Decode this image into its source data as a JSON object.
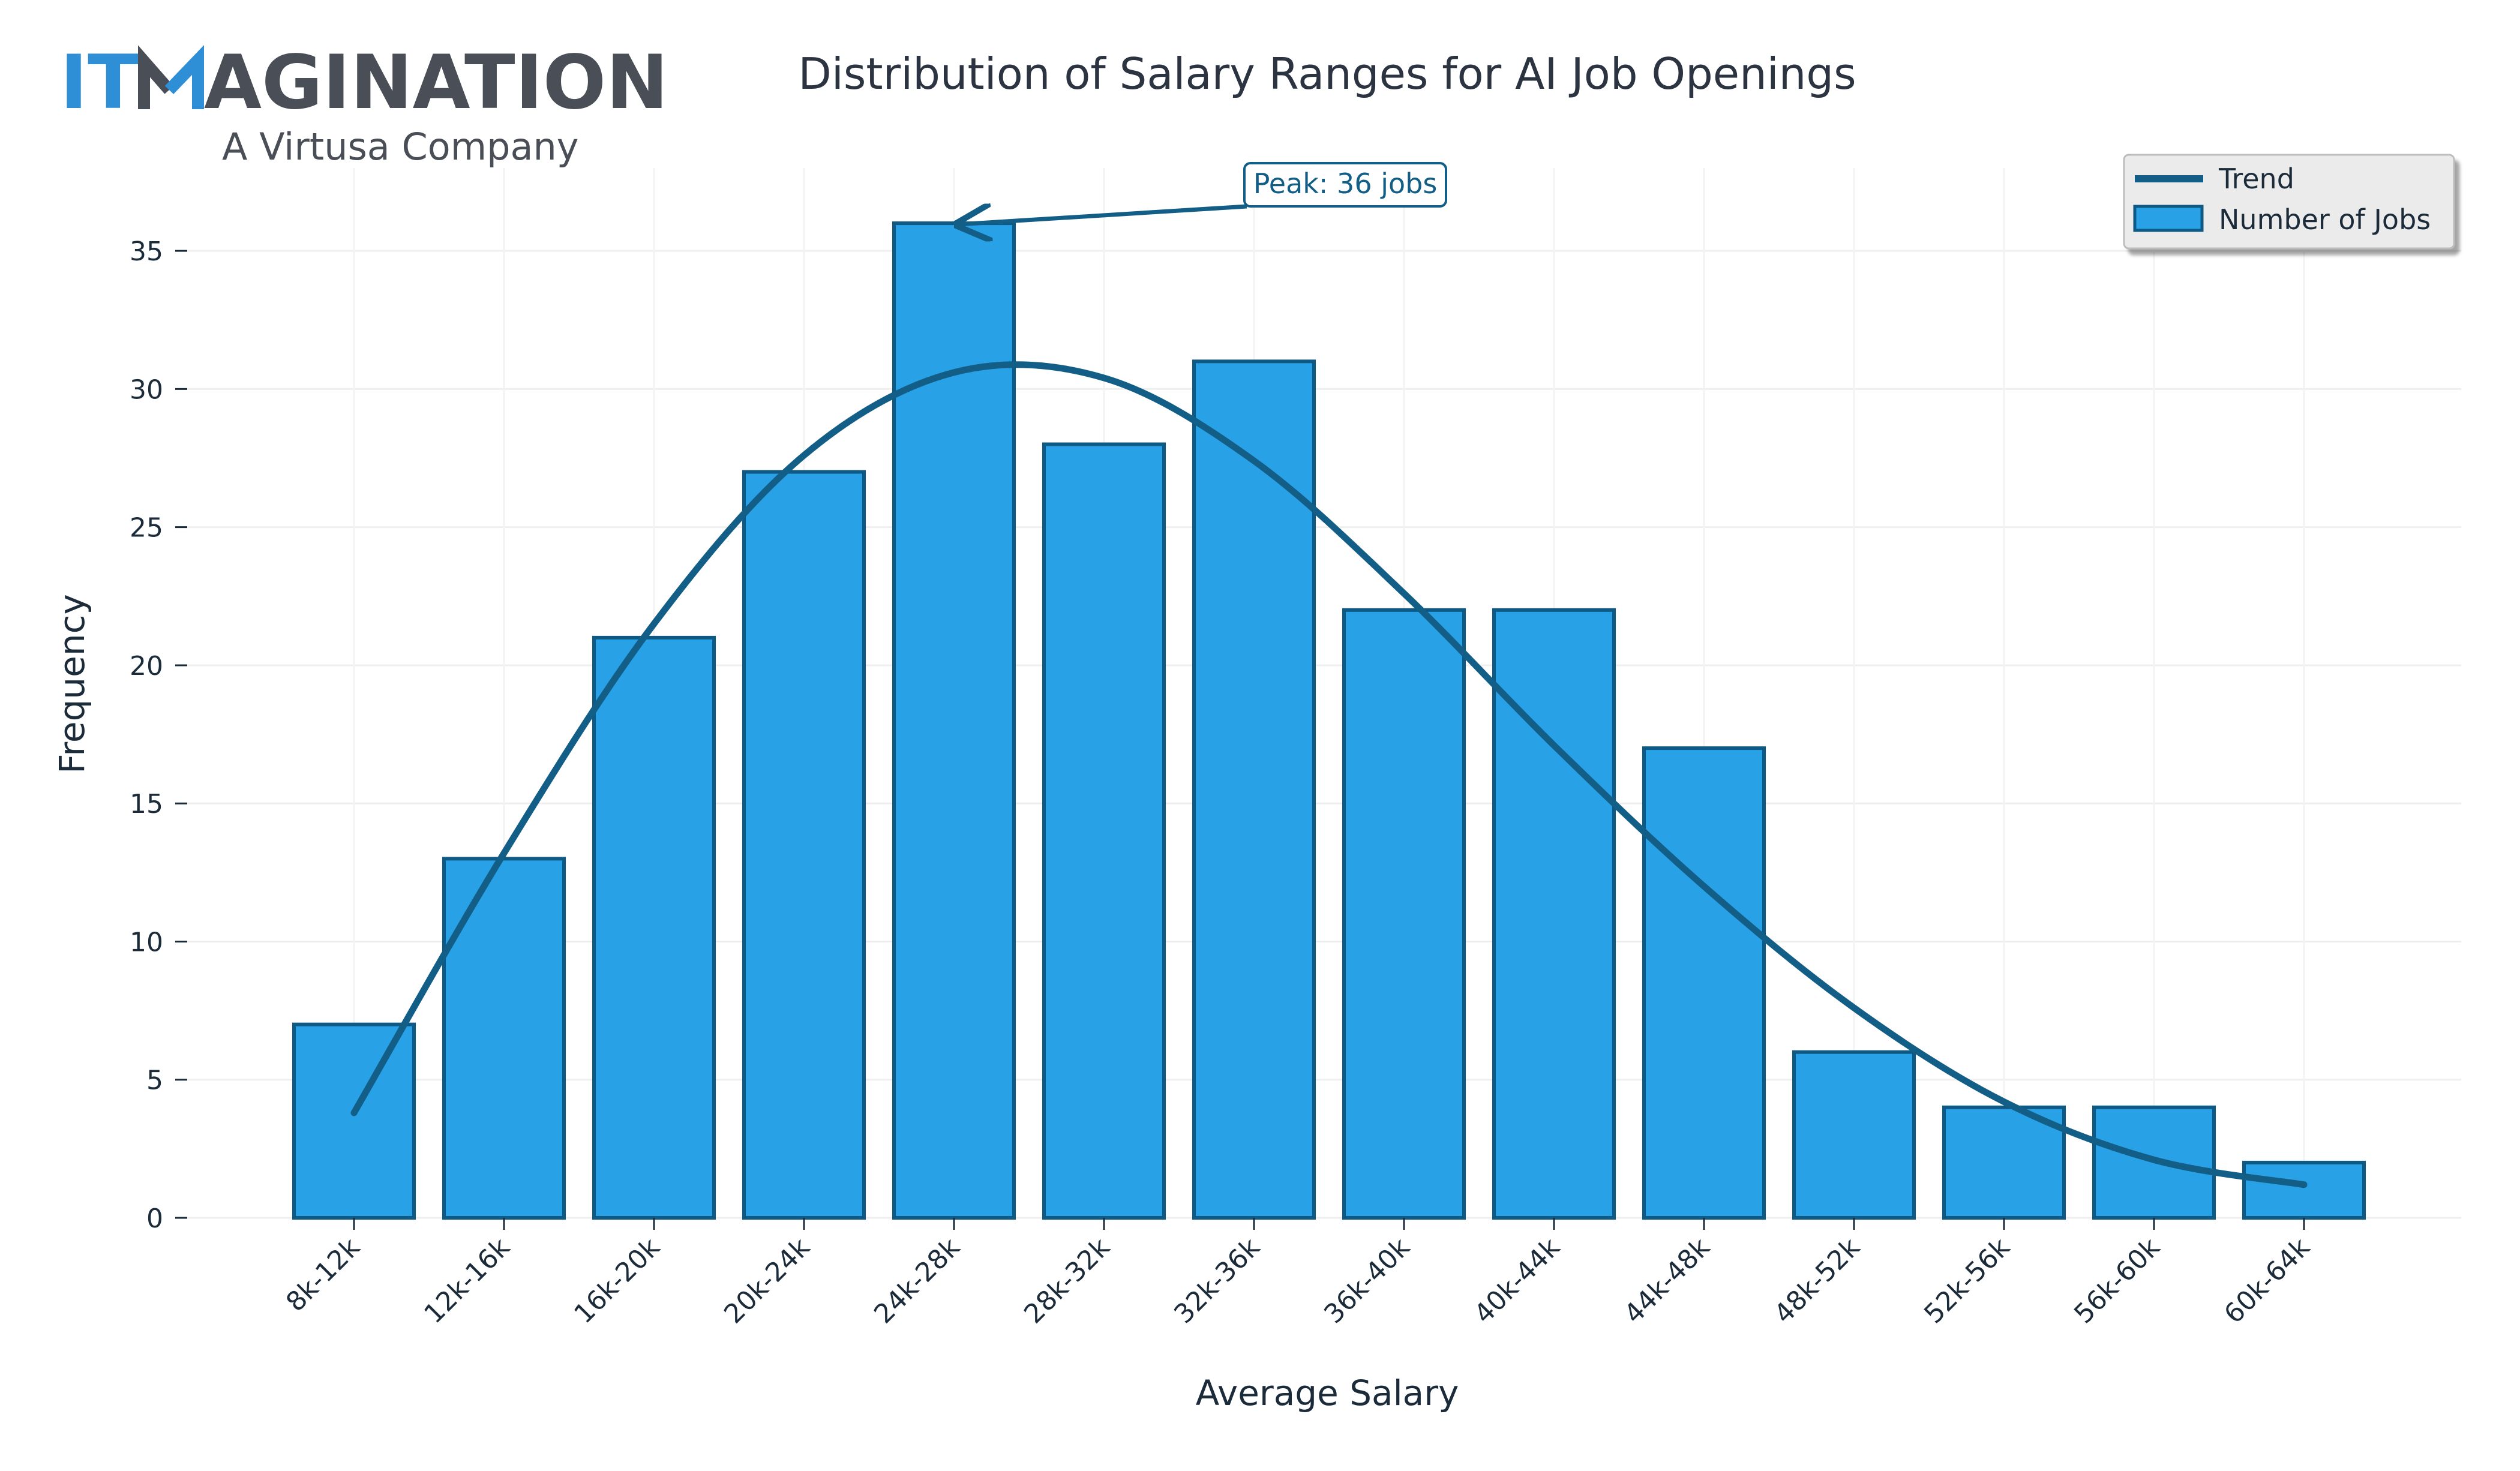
{
  "logo": {
    "prefix": "IT",
    "suffix": "AGINATION",
    "tagline": "A Virtusa Company",
    "accent_color": "#2e8fd6",
    "text_color": "#4a4f57"
  },
  "chart_data": {
    "type": "bar",
    "title": "Distribution of Salary Ranges for AI Job Openings",
    "xlabel": "Average Salary",
    "ylabel": "Frequency",
    "categories": [
      "8k-12k",
      "12k-16k",
      "16k-20k",
      "20k-24k",
      "24k-28k",
      "28k-32k",
      "32k-36k",
      "36k-40k",
      "40k-44k",
      "44k-48k",
      "48k-52k",
      "52k-56k",
      "56k-60k",
      "60k-64k"
    ],
    "series": [
      {
        "name": "Number of Jobs",
        "type": "bar",
        "color": "#29a1e6",
        "edge_color": "#0f5a85",
        "values": [
          7,
          13,
          21,
          27,
          36,
          28,
          31,
          22,
          22,
          17,
          6,
          4,
          4,
          2
        ]
      },
      {
        "name": "Trend",
        "type": "line",
        "color": "#135e86",
        "values": [
          3.8,
          13.2,
          21.5,
          27.6,
          30.6,
          30.4,
          27.4,
          22.6,
          17.1,
          12.0,
          7.6,
          4.2,
          2.1,
          1.2
        ]
      }
    ],
    "ylim": [
      0,
      38
    ],
    "yticks": [
      0,
      5,
      10,
      15,
      20,
      25,
      30,
      35
    ],
    "grid": true,
    "legend_position": "top-right",
    "annotation": {
      "text": "Peak: 36 jobs",
      "target_category": "24k-28k",
      "target_value": 36
    }
  }
}
